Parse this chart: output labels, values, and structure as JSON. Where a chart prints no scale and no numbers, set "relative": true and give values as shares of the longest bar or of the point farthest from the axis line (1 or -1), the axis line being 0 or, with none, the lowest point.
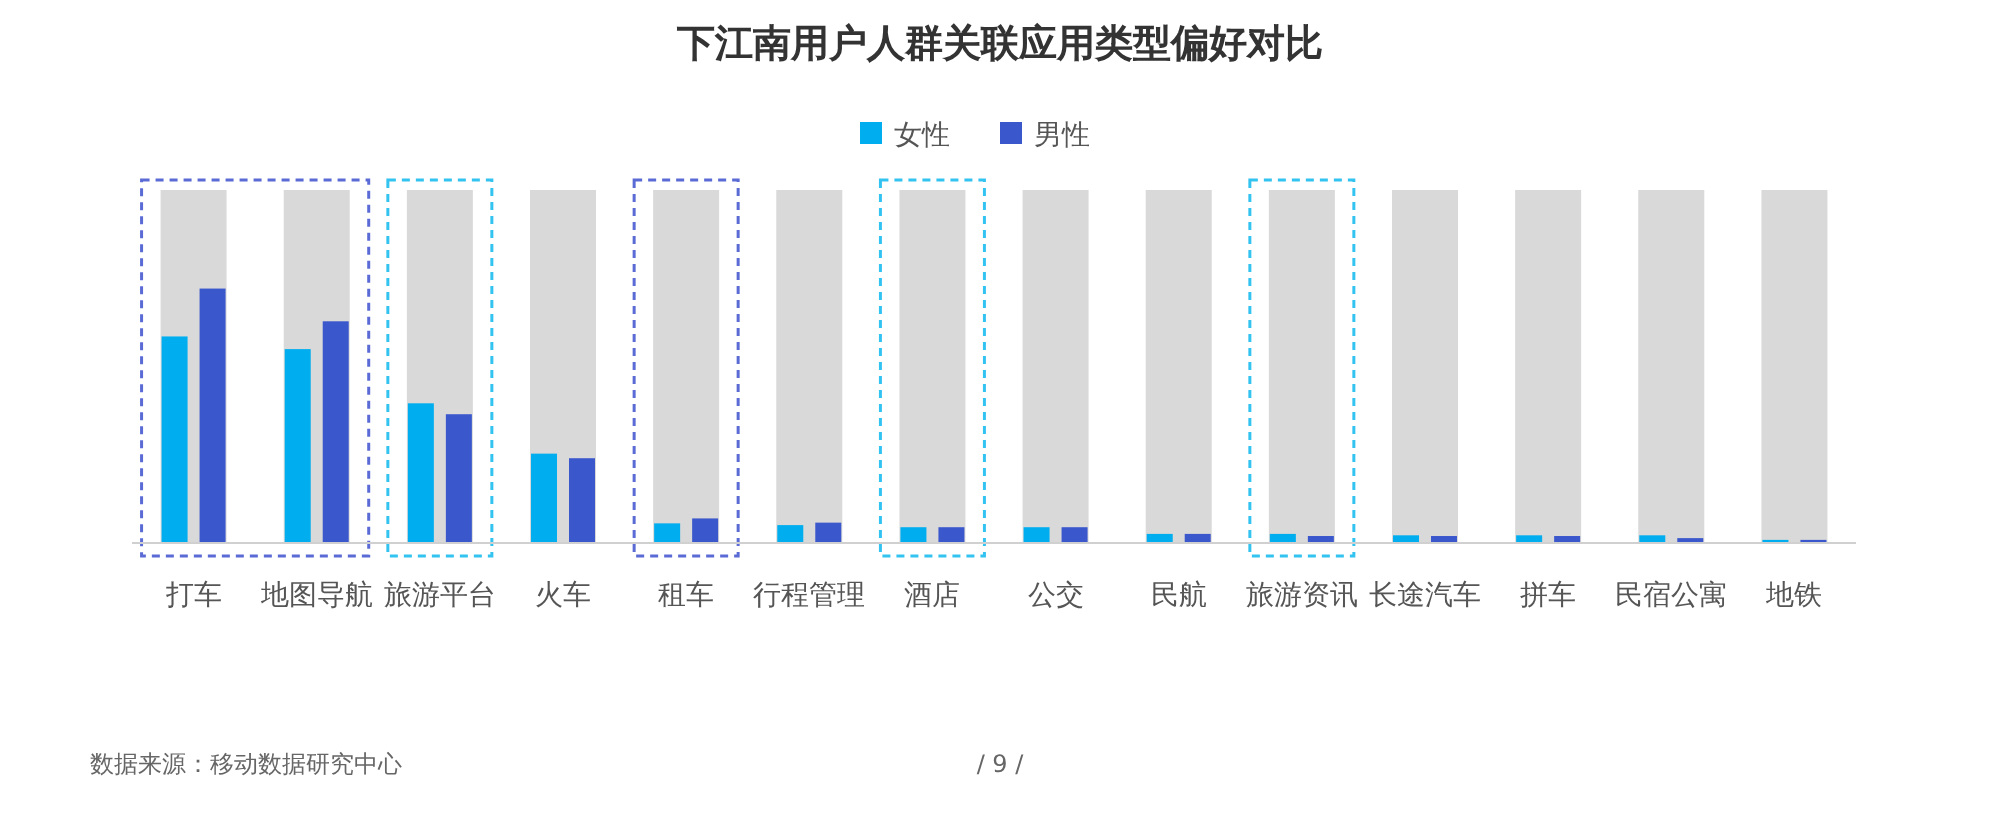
{
  "chart_data": {
    "type": "bar",
    "title": "下江南用户人群关联应用类型偏好对比",
    "relative": true,
    "legend": "top",
    "categories": [
      "打车",
      "地图导航",
      "旅游平台",
      "火车",
      "租车",
      "行程管理",
      "酒店",
      "公交",
      "民航",
      "旅游资讯",
      "长途汽车",
      "拼车",
      "民宿公寓",
      "地铁"
    ],
    "series": [
      {
        "color": "#d9d9d9",
        "values": [
          1,
          1,
          1,
          1,
          1,
          1,
          1,
          1,
          1,
          1,
          1,
          1,
          1,
          1
        ]
      },
      {
        "name": "女性",
        "color": "#00aeef",
        "values": [
          0.584,
          0.548,
          0.394,
          0.251,
          0.053,
          0.048,
          0.042,
          0.042,
          0.023,
          0.023,
          0.019,
          0.019,
          0.019,
          0.006
        ]
      },
      {
        "name": "男性",
        "color": "#3a57cc",
        "values": [
          0.72,
          0.627,
          0.363,
          0.238,
          0.067,
          0.055,
          0.042,
          0.042,
          0.023,
          0.017,
          0.017,
          0.017,
          0.011,
          0.006
        ]
      }
    ],
    "annotations": [
      "数据来源：移动数据研究中心",
      "/ 9 /"
    ]
  }
}
